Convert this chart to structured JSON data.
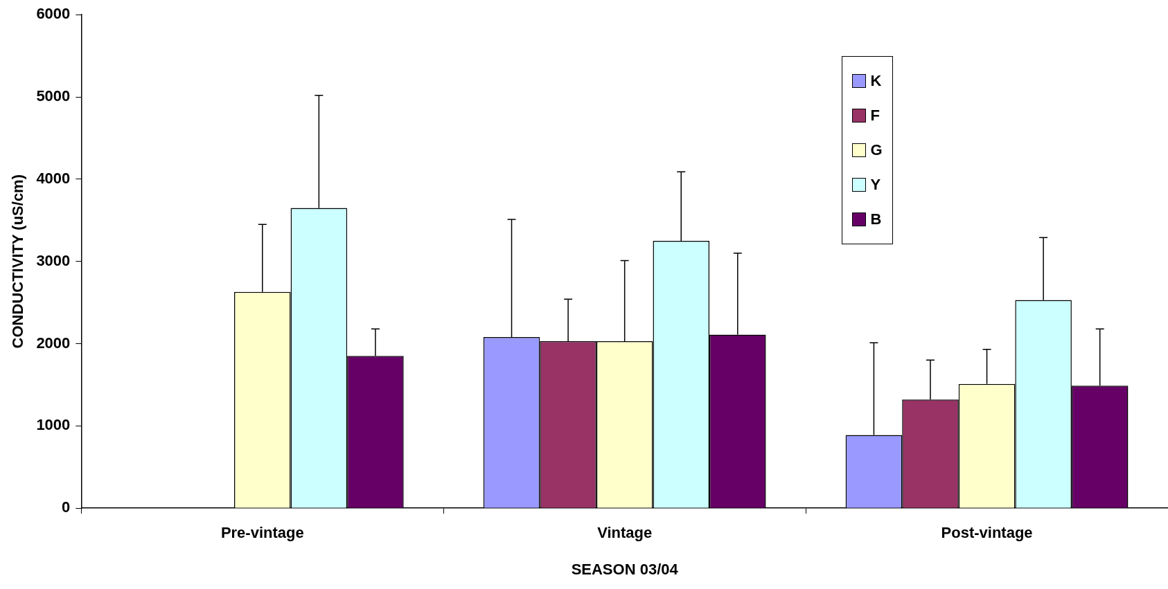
{
  "chart_data": {
    "type": "bar",
    "xlabel": "SEASON 03/04",
    "ylabel": "CONDUCTIVITY (uS/cm)",
    "categories": [
      "Pre-vintage",
      "Vintage",
      "Post-vintage"
    ],
    "series": [
      {
        "name": "K",
        "color": "#9999ff",
        "values": [
          null,
          2080,
          890
        ],
        "errors": [
          null,
          [
            2080,
            3510
          ],
          [
            890,
            2010
          ]
        ]
      },
      {
        "name": "F",
        "color": "#993366",
        "values": [
          null,
          2030,
          1320
        ],
        "errors": [
          null,
          [
            2030,
            2540
          ],
          [
            1320,
            1800
          ]
        ]
      },
      {
        "name": "G",
        "color": "#ffffcc",
        "values": [
          2630,
          2030,
          1510
        ],
        "errors": [
          [
            2630,
            3450
          ],
          [
            2030,
            3010
          ],
          [
            1510,
            1930
          ]
        ]
      },
      {
        "name": "Y",
        "color": "#ccffff",
        "values": [
          3650,
          3250,
          2530
        ],
        "errors": [
          [
            3650,
            5020
          ],
          [
            3250,
            4090
          ],
          [
            2530,
            3290
          ]
        ]
      },
      {
        "name": "B",
        "color": "#660066",
        "values": [
          1850,
          2110,
          1490
        ],
        "errors": [
          [
            1850,
            2180
          ],
          [
            2110,
            3100
          ],
          [
            1490,
            2180
          ]
        ]
      }
    ],
    "ylim": [
      0,
      6000
    ],
    "yticks": [
      0,
      1000,
      2000,
      3000,
      4000,
      5000,
      6000
    ],
    "grid": false,
    "legend": "top right"
  }
}
